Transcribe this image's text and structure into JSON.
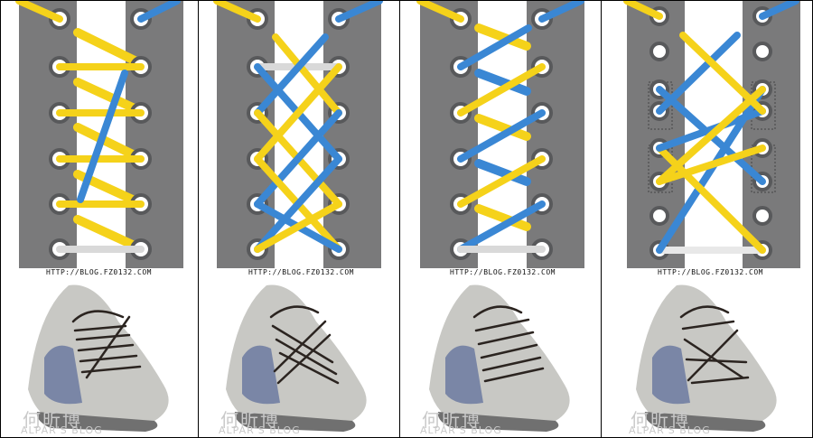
{
  "figure": {
    "caption_url": "HTTP://BLOG.FZ0132.COM",
    "watermark_cn": "何昕博",
    "watermark_en": "ALPAR'S BLOG",
    "panel_count": 4,
    "colors": {
      "flap": "#7a7a7b",
      "eyelet_ring": "#58595b",
      "eyelet_hole": "#ffffff",
      "lace_yellow": "#f5d21a",
      "lace_blue": "#3a87d4",
      "lace_white": "#d9d9d9",
      "shoe_body": "#c8c8c4",
      "shoe_lace": "#2b2420",
      "sole": "#707070"
    }
  },
  "panels": [
    {
      "name": "lacing-style-1",
      "description_icon": "shoe-lacing-diagram-icon"
    },
    {
      "name": "lacing-style-2",
      "description_icon": "shoe-lacing-diagram-icon"
    },
    {
      "name": "lacing-style-3",
      "description_icon": "shoe-lacing-diagram-icon"
    },
    {
      "name": "lacing-style-4",
      "description_icon": "shoe-lacing-diagram-icon"
    }
  ]
}
